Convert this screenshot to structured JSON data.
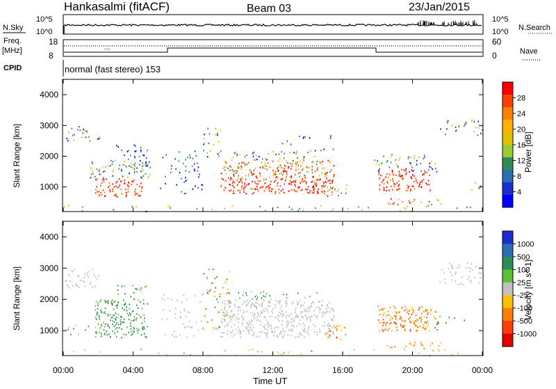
{
  "header": {
    "station": "Hankasalmi (fitACF)",
    "beam": "Beam 03",
    "date": "23/Jan/2015"
  },
  "top_panel": {
    "nsky_label": "N.Sky",
    "nsearch_label": "N.Search",
    "left_ticks": [
      "10^5",
      "10^0"
    ],
    "right_ticks": [
      "10^5",
      "10^0"
    ],
    "freq_label_line1": "Freq.",
    "freq_label_line2": "[MHz]",
    "freq_ticks": [
      "18",
      "8"
    ],
    "nave_label": "Nave",
    "nave_ticks": [
      "60",
      "0"
    ],
    "cpid_label": "CPID",
    "cpid_text": "normal (fast stereo) 153"
  },
  "colors": {
    "scatter_green": "#2e8b57",
    "ground_gray": "#c0c0c0",
    "red": "#e01010",
    "blue": "#1a2fd0"
  },
  "chart_data": [
    {
      "type": "heatmap",
      "name": "power",
      "ylabel": "Slant Range [km]",
      "yticks": [
        "4000",
        "3000",
        "2000",
        "1000"
      ],
      "ylim": [
        200,
        4500
      ],
      "xlabel": "Time UT",
      "xticks": [
        "00:00",
        "04:00",
        "08:00",
        "12:00",
        "16:00",
        "20:00",
        "00:00"
      ],
      "colorbar": {
        "label": "Power [dB]",
        "ticks": [
          "28",
          "24",
          "20",
          "16",
          "12",
          "8",
          "4"
        ],
        "colors": [
          "#ff0000",
          "#ff4000",
          "#ff8000",
          "#ffb000",
          "#e0c000",
          "#9acd32",
          "#2e8b57",
          "#2a6fb0",
          "#1a2fd0",
          "#0000ff"
        ]
      }
    },
    {
      "type": "heatmap",
      "name": "velocity",
      "ylabel": "Slant Range [km]",
      "yticks": [
        "4000",
        "3000",
        "2000",
        "1000"
      ],
      "ylim": [
        200,
        4500
      ],
      "xlabel": "Time UT",
      "xticks": [
        "00:00",
        "04:00",
        "08:00",
        "12:00",
        "16:00",
        "20:00",
        "00:00"
      ],
      "colorbar": {
        "label": "Velocity [m s^-1]",
        "ticks": [
          "1000",
          "500",
          "100",
          "25",
          "-25",
          "-100",
          "-500",
          "-1000"
        ],
        "colors": [
          "#1a2fd0",
          "#2a6fb0",
          "#2e8b57",
          "#5cbf3a",
          "#c0c0c0",
          "#ffc000",
          "#ff8000",
          "#ff4000",
          "#e00000"
        ]
      }
    }
  ]
}
